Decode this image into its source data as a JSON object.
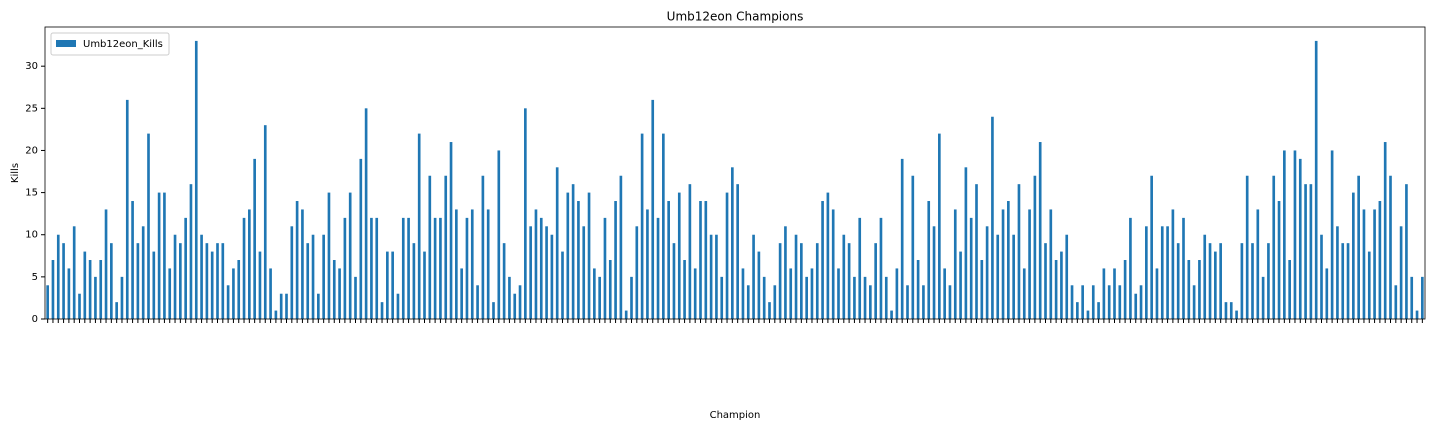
{
  "chart_data": {
    "type": "bar",
    "title": "Umb12eon Champions",
    "xlabel": "Champion",
    "ylabel": "Kills",
    "legend": "upper left",
    "series": [
      {
        "name": "Umb12eon_Kills",
        "color": "#1f77b4",
        "values": [
          4,
          7,
          10,
          9,
          6,
          11,
          3,
          8,
          7,
          5,
          7,
          13,
          9,
          2,
          5,
          26,
          14,
          9,
          11,
          22,
          8,
          15,
          15,
          6,
          10,
          9,
          12,
          16,
          33,
          10,
          9,
          8,
          9,
          9,
          4,
          6,
          7,
          12,
          13,
          19,
          8,
          23,
          6,
          1,
          3,
          3,
          11,
          14,
          13,
          9,
          10,
          3,
          10,
          15,
          7,
          6,
          12,
          15,
          5,
          19,
          25,
          12,
          12,
          2,
          8,
          8,
          3,
          12,
          12,
          9,
          22,
          8,
          17,
          12,
          12,
          17,
          21,
          13,
          6,
          12,
          13,
          4,
          17,
          13,
          2,
          20,
          9,
          5,
          3,
          4,
          25,
          11,
          13,
          12,
          11,
          10,
          18,
          8,
          15,
          16,
          14,
          11,
          15,
          6,
          5,
          12,
          7,
          14,
          17,
          1,
          5,
          11,
          22,
          13,
          26,
          12,
          22,
          14,
          9,
          15,
          7,
          16,
          6,
          14,
          14,
          10,
          10,
          5,
          15,
          18,
          16,
          6,
          4,
          10,
          8,
          5,
          2,
          4,
          9,
          11,
          6,
          10,
          9,
          5,
          6,
          9,
          14,
          15,
          13,
          6,
          10,
          9,
          5,
          12,
          5,
          4,
          9,
          12,
          5,
          1,
          6,
          19,
          4,
          17,
          7,
          4,
          14,
          11,
          22,
          6,
          4,
          13,
          8,
          18,
          12,
          16,
          7,
          11,
          24,
          10,
          13,
          14,
          10,
          16,
          6,
          13,
          17,
          21,
          9,
          13,
          7,
          8,
          10,
          4,
          2,
          4,
          1,
          4,
          2,
          6,
          4,
          6,
          4,
          7,
          12,
          3,
          4,
          11,
          17,
          6,
          11,
          11,
          13,
          9,
          12,
          7,
          4,
          7,
          10,
          9,
          8,
          9,
          2,
          2,
          1,
          9,
          17,
          9,
          13,
          5,
          9,
          17,
          14,
          20,
          7,
          20,
          19,
          16,
          16,
          33,
          10,
          6,
          20,
          11,
          9,
          9,
          15,
          17,
          13,
          8,
          13,
          14,
          21,
          17,
          4,
          11,
          16,
          5,
          1,
          5
        ]
      }
    ],
    "categories": [
      null,
      null,
      null,
      null,
      null,
      null,
      null,
      null,
      null,
      null,
      null,
      null,
      null,
      null,
      null,
      null,
      null,
      null,
      null,
      null,
      null,
      null,
      null,
      null,
      null,
      null,
      null,
      null,
      null,
      null,
      null,
      null,
      null,
      null,
      null,
      null,
      null,
      null,
      null,
      null,
      null,
      null,
      null,
      null,
      null,
      null,
      null,
      null,
      null,
      null,
      null,
      null,
      null,
      null,
      null,
      null,
      null,
      null,
      null,
      null,
      null,
      null,
      null,
      null,
      null,
      null,
      null,
      null,
      null,
      null,
      null,
      null,
      null,
      null,
      null,
      null,
      null,
      null,
      null,
      null,
      null,
      null,
      null,
      null,
      null,
      null,
      null,
      null,
      null,
      null,
      null,
      null,
      null,
      null,
      null,
      null,
      null,
      null,
      null,
      null,
      null,
      null,
      null,
      null,
      null,
      null,
      null,
      null,
      null,
      null,
      null,
      null,
      null,
      null,
      null,
      null,
      null,
      null,
      null,
      null,
      null,
      null,
      null,
      null,
      null,
      null,
      null,
      null,
      null,
      null,
      null,
      null,
      null,
      null,
      null,
      null,
      null,
      null,
      null,
      null,
      null,
      null,
      null,
      null,
      null,
      null,
      null,
      null,
      null,
      null,
      null,
      null,
      null,
      null,
      null,
      null,
      null,
      null,
      null,
      null,
      null,
      null,
      null,
      null,
      null,
      null,
      null,
      null,
      null,
      null,
      null,
      null,
      null,
      null,
      null,
      null,
      null,
      null,
      null,
      null,
      null,
      null,
      null,
      null,
      null,
      null,
      null,
      null,
      null,
      null,
      null,
      null,
      null,
      null,
      null,
      null,
      null,
      null,
      null,
      null,
      null,
      null,
      null,
      null,
      null,
      null,
      null,
      null,
      null,
      null,
      null,
      null,
      null,
      null,
      null,
      null,
      null,
      null,
      null,
      null,
      null,
      null,
      null,
      null,
      null,
      null,
      null,
      null,
      null,
      null,
      null,
      null,
      null,
      null,
      null,
      null,
      null,
      null,
      null,
      null,
      null,
      null,
      null,
      null,
      null,
      null,
      null,
      null,
      null,
      null,
      null,
      null,
      null,
      null,
      null,
      null,
      null,
      null,
      null,
      null
    ],
    "ylim": [
      0,
      34.65
    ],
    "yticks": [
      0,
      5,
      10,
      15,
      20,
      25,
      30
    ],
    "grid": false
  }
}
